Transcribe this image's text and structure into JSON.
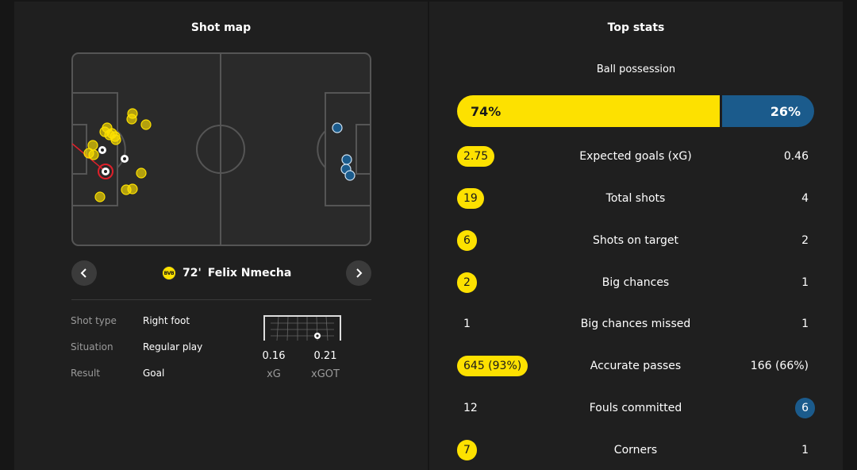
{
  "shot_map": {
    "title": "Shot map",
    "selected_shot": {
      "minute": "72'",
      "player": "Felix Nmecha",
      "club_badge_text": "BVB"
    },
    "details": [
      {
        "label": "Shot type",
        "value": "Right foot"
      },
      {
        "label": "Situation",
        "value": "Regular play"
      },
      {
        "label": "Result",
        "value": "Goal"
      }
    ],
    "xg_value": "0.16",
    "xg_label": "xG",
    "xgot_value": "0.21",
    "xgot_label": "xGOT",
    "colors": {
      "home": "#fde100",
      "away": "#1b5b8c",
      "selected": "#e0202a"
    }
  },
  "top_stats": {
    "title": "Top stats",
    "possession": {
      "label": "Ball possession",
      "home": "74%",
      "away": "26%",
      "home_pct": 74
    },
    "rows": [
      {
        "label": "Expected goals (xG)",
        "home": "2.75",
        "away": "0.46",
        "highlight": "home"
      },
      {
        "label": "Total shots",
        "home": "19",
        "away": "4",
        "highlight": "home"
      },
      {
        "label": "Shots on target",
        "home": "6",
        "away": "2",
        "highlight": "home"
      },
      {
        "label": "Big chances",
        "home": "2",
        "away": "1",
        "highlight": "home"
      },
      {
        "label": "Big chances missed",
        "home": "1",
        "away": "1",
        "highlight": "none"
      },
      {
        "label": "Accurate passes",
        "home": "645 (93%)",
        "away": "166 (66%)",
        "highlight": "home"
      },
      {
        "label": "Fouls committed",
        "home": "12",
        "away": "6",
        "highlight": "away"
      },
      {
        "label": "Corners",
        "home": "7",
        "away": "1",
        "highlight": "home"
      }
    ]
  },
  "icons": {
    "prev": "chevron-left-icon",
    "next": "chevron-right-icon",
    "ball": "football-icon"
  }
}
